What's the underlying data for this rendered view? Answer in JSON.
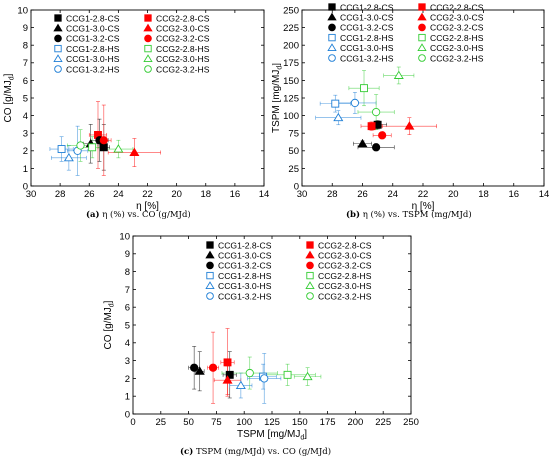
{
  "chart_data": [
    {
      "type": "scatter",
      "panel": "a",
      "caption_letter": "(a)",
      "caption_text": "η (%) vs. CO (g/MJd)",
      "xlabel": "η [%]",
      "ylabel": "CO [g/MJd]",
      "xlim": [
        30,
        14
      ],
      "ylim": [
        0,
        10
      ],
      "xticks": [
        30,
        28,
        26,
        24,
        22,
        20,
        18,
        16,
        14
      ],
      "yticks": [
        0,
        1,
        2,
        3,
        4,
        5,
        6,
        7,
        8,
        9,
        10
      ],
      "legend_placement": "top-center",
      "series": [
        {
          "name": "CCG1-2.8-CS",
          "marker": "square",
          "filled": true,
          "color": "#000000",
          "x": 25.0,
          "y": 2.2,
          "xerr": 0.4,
          "yerr": 1.3
        },
        {
          "name": "CCG2-2.8-CS",
          "marker": "square",
          "filled": true,
          "color": "#ff0000",
          "x": 25.4,
          "y": 2.9,
          "xerr": 0.6,
          "yerr": 1.9
        },
        {
          "name": "CCG1-3.0-CS",
          "marker": "triangle",
          "filled": true,
          "color": "#000000",
          "x": 25.9,
          "y": 2.4,
          "xerr": 0.5,
          "yerr": 1.1
        },
        {
          "name": "CCG2-3.0-CS",
          "marker": "triangle",
          "filled": true,
          "color": "#ff0000",
          "x": 22.9,
          "y": 1.9,
          "xerr": 1.8,
          "yerr": 0.8
        },
        {
          "name": "CCG1-3.2-CS",
          "marker": "circle",
          "filled": true,
          "color": "#000000",
          "x": 25.3,
          "y": 2.6,
          "xerr": 0.6,
          "yerr": 1.2
        },
        {
          "name": "CCG2-3.2-CS",
          "marker": "circle",
          "filled": true,
          "color": "#ff0000",
          "x": 25.0,
          "y": 2.6,
          "xerr": 0.5,
          "yerr": 2.0
        },
        {
          "name": "CCG1-2.8-HS",
          "marker": "square",
          "filled": false,
          "color": "#1f7fd6",
          "x": 27.9,
          "y": 2.1,
          "xerr": 0.8,
          "yerr": 0.7
        },
        {
          "name": "CCG2-2.8-HS",
          "marker": "square",
          "filled": false,
          "color": "#33cc33",
          "x": 25.8,
          "y": 2.2,
          "xerr": 0.8,
          "yerr": 0.6
        },
        {
          "name": "CCG1-3.0-HS",
          "marker": "triangle",
          "filled": false,
          "color": "#1f7fd6",
          "x": 27.4,
          "y": 1.6,
          "xerr": 1.2,
          "yerr": 0.7
        },
        {
          "name": "CCG2-3.0-HS",
          "marker": "triangle",
          "filled": false,
          "color": "#33cc33",
          "x": 24.0,
          "y": 2.1,
          "xerr": 1.0,
          "yerr": 0.5
        },
        {
          "name": "CCG1-3.2-HS",
          "marker": "circle",
          "filled": false,
          "color": "#1f7fd6",
          "x": 26.8,
          "y": 2.0,
          "xerr": 0.7,
          "yerr": 1.4
        },
        {
          "name": "CCG2-3.2-HS",
          "marker": "circle",
          "filled": false,
          "color": "#33cc33",
          "x": 26.6,
          "y": 2.3,
          "xerr": 0.9,
          "yerr": 0.9
        }
      ]
    },
    {
      "type": "scatter",
      "panel": "b",
      "caption_letter": "(b)",
      "caption_text": "η (%) vs. TSPM (mg/MJd)",
      "xlabel": "η [%]",
      "ylabel": "TSPM [mg/MJd]",
      "xlim": [
        30,
        14
      ],
      "ylim": [
        0,
        250
      ],
      "xticks": [
        30,
        28,
        26,
        24,
        22,
        20,
        18,
        16,
        14
      ],
      "yticks": [
        0,
        25,
        50,
        75,
        100,
        125,
        150,
        175,
        200,
        225,
        250
      ],
      "legend_placement": "top-center",
      "series": [
        {
          "name": "CCG1-2.8-CS",
          "marker": "square",
          "filled": true,
          "color": "#000000",
          "x": 25.0,
          "y": 87,
          "xerr": 0.6,
          "yerr": 6
        },
        {
          "name": "CCG2-2.8-CS",
          "marker": "square",
          "filled": true,
          "color": "#ff0000",
          "x": 25.4,
          "y": 85,
          "xerr": 0.7,
          "yerr": 6
        },
        {
          "name": "CCG1-3.0-CS",
          "marker": "triangle",
          "filled": true,
          "color": "#000000",
          "x": 26.0,
          "y": 60,
          "xerr": 0.6,
          "yerr": 4
        },
        {
          "name": "CCG2-3.0-CS",
          "marker": "triangle",
          "filled": true,
          "color": "#ff0000",
          "x": 22.9,
          "y": 85,
          "xerr": 1.8,
          "yerr": 12
        },
        {
          "name": "CCG1-3.2-CS",
          "marker": "circle",
          "filled": true,
          "color": "#000000",
          "x": 25.1,
          "y": 55,
          "xerr": 1.2,
          "yerr": 5
        },
        {
          "name": "CCG2-3.2-CS",
          "marker": "circle",
          "filled": true,
          "color": "#ff0000",
          "x": 24.7,
          "y": 72,
          "xerr": 0.6,
          "yerr": 5
        },
        {
          "name": "CCG1-2.8-HS",
          "marker": "square",
          "filled": false,
          "color": "#1f7fd6",
          "x": 27.8,
          "y": 117,
          "xerr": 1.0,
          "yerr": 12
        },
        {
          "name": "CCG2-2.8-HS",
          "marker": "square",
          "filled": false,
          "color": "#33cc33",
          "x": 25.9,
          "y": 139,
          "xerr": 1.0,
          "yerr": 25
        },
        {
          "name": "CCG1-3.0-HS",
          "marker": "triangle",
          "filled": false,
          "color": "#1f7fd6",
          "x": 27.6,
          "y": 97,
          "xerr": 1.5,
          "yerr": 10
        },
        {
          "name": "CCG2-3.0-HS",
          "marker": "triangle",
          "filled": false,
          "color": "#33cc33",
          "x": 23.6,
          "y": 157,
          "xerr": 1.0,
          "yerr": 12
        },
        {
          "name": "CCG1-3.2-HS",
          "marker": "circle",
          "filled": false,
          "color": "#1f7fd6",
          "x": 26.5,
          "y": 118,
          "xerr": 1.4,
          "yerr": 15
        },
        {
          "name": "CCG2-3.2-HS",
          "marker": "circle",
          "filled": false,
          "color": "#33cc33",
          "x": 25.1,
          "y": 105,
          "xerr": 1.2,
          "yerr": 25
        }
      ]
    },
    {
      "type": "scatter",
      "panel": "c",
      "caption_letter": "(c)",
      "caption_text": "TSPM (mg/MJd) vs. CO (g/MJd)",
      "xlabel": "TSPM [mg/MJd]",
      "ylabel": "CO [g/MJd]",
      "xlim": [
        0,
        250
      ],
      "ylim": [
        0,
        10
      ],
      "xticks": [
        0,
        25,
        50,
        75,
        100,
        125,
        150,
        175,
        200,
        225,
        250
      ],
      "yticks": [
        0,
        1,
        2,
        3,
        4,
        5,
        6,
        7,
        8,
        9,
        10
      ],
      "legend_placement": "top-center",
      "series": [
        {
          "name": "CCG1-2.8-CS",
          "marker": "square",
          "filled": true,
          "color": "#000000",
          "x": 87,
          "y": 2.2,
          "xerr": 6,
          "yerr": 1.3
        },
        {
          "name": "CCG2-2.8-CS",
          "marker": "square",
          "filled": true,
          "color": "#ff0000",
          "x": 85,
          "y": 2.9,
          "xerr": 6,
          "yerr": 1.9
        },
        {
          "name": "CCG1-3.0-CS",
          "marker": "triangle",
          "filled": true,
          "color": "#000000",
          "x": 60,
          "y": 2.4,
          "xerr": 4,
          "yerr": 1.1
        },
        {
          "name": "CCG2-3.0-CS",
          "marker": "triangle",
          "filled": true,
          "color": "#ff0000",
          "x": 85,
          "y": 1.9,
          "xerr": 12,
          "yerr": 0.8
        },
        {
          "name": "CCG1-3.2-CS",
          "marker": "circle",
          "filled": true,
          "color": "#000000",
          "x": 55,
          "y": 2.6,
          "xerr": 5,
          "yerr": 1.2
        },
        {
          "name": "CCG2-3.2-CS",
          "marker": "circle",
          "filled": true,
          "color": "#ff0000",
          "x": 72,
          "y": 2.6,
          "xerr": 5,
          "yerr": 2.0
        },
        {
          "name": "CCG1-2.8-HS",
          "marker": "square",
          "filled": false,
          "color": "#1f7fd6",
          "x": 117,
          "y": 2.1,
          "xerr": 12,
          "yerr": 0.7
        },
        {
          "name": "CCG2-2.8-HS",
          "marker": "square",
          "filled": false,
          "color": "#33cc33",
          "x": 139,
          "y": 2.2,
          "xerr": 25,
          "yerr": 0.6
        },
        {
          "name": "CCG1-3.0-HS",
          "marker": "triangle",
          "filled": false,
          "color": "#1f7fd6",
          "x": 97,
          "y": 1.6,
          "xerr": 10,
          "yerr": 0.7
        },
        {
          "name": "CCG2-3.0-HS",
          "marker": "triangle",
          "filled": false,
          "color": "#33cc33",
          "x": 157,
          "y": 2.1,
          "xerr": 12,
          "yerr": 0.5
        },
        {
          "name": "CCG1-3.2-HS",
          "marker": "circle",
          "filled": false,
          "color": "#1f7fd6",
          "x": 118,
          "y": 2.0,
          "xerr": 15,
          "yerr": 1.4
        },
        {
          "name": "CCG2-3.2-HS",
          "marker": "circle",
          "filled": false,
          "color": "#33cc33",
          "x": 105,
          "y": 2.3,
          "xerr": 25,
          "yerr": 0.9
        }
      ]
    }
  ]
}
